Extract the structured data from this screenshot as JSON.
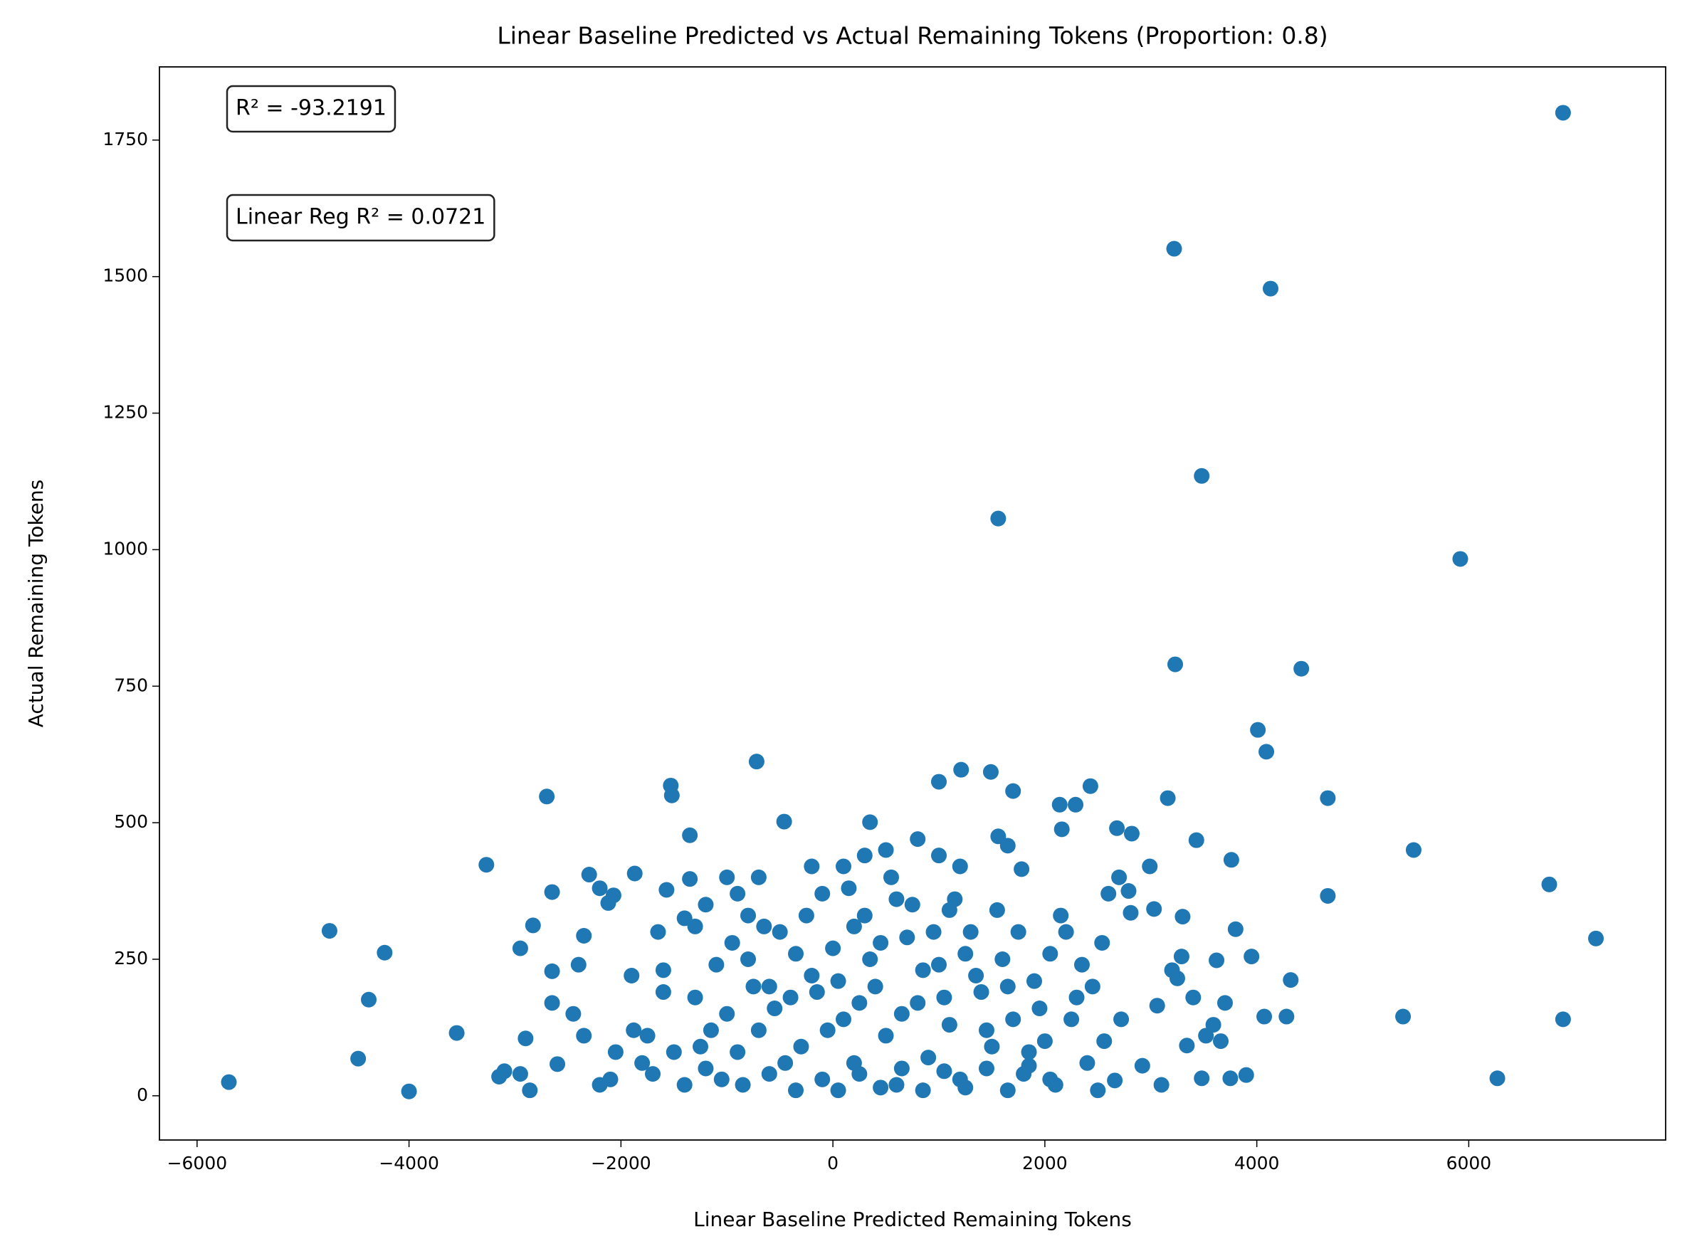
{
  "chart_data": {
    "type": "scatter",
    "title": "Linear Baseline Predicted vs Actual Remaining Tokens (Proportion: 0.8)",
    "x_label": "Linear Baseline Predicted Remaining Tokens",
    "y_label": "Actual Remaining Tokens",
    "annotations": [
      "R² = -93.2191",
      "Linear Reg R² = 0.0721"
    ],
    "color": "#1f77b4",
    "xlim": [
      -6355,
      7858
    ],
    "ylim": [
      -81,
      1884
    ],
    "xticks": [
      {
        "value": -6000,
        "label": "−6000"
      },
      {
        "value": -4000,
        "label": "−4000"
      },
      {
        "value": -2000,
        "label": "−2000"
      },
      0,
      2000,
      4000,
      6000
    ],
    "yticks": [
      0,
      250,
      500,
      750,
      1000,
      1250,
      1500,
      1750
    ],
    "x": [
      -5700,
      -4750,
      -4230,
      -4380,
      -4480,
      -4000,
      -3550,
      -3270,
      -3150,
      -2950,
      -2900,
      -2830,
      -2700,
      -2650,
      -2650,
      -2650,
      -2600,
      -2350,
      -2300,
      -2200,
      -2120,
      -2070,
      -1870,
      -1530,
      -1520,
      -1350,
      -1350,
      -1570,
      -720,
      -460,
      350,
      1000,
      1210,
      1490,
      1560,
      1560,
      1650,
      1700,
      1780,
      2140,
      2160,
      2290,
      2430,
      2680,
      2820,
      2990,
      3160,
      3220,
      3230,
      3300,
      3430,
      3480,
      3760,
      3800,
      3950,
      4010,
      4070,
      4090,
      4130,
      4280,
      4320,
      4420,
      4670,
      4670,
      5380,
      5480,
      5920,
      6270,
      6760,
      6890,
      6890,
      7200,
      3900,
      3750,
      3700,
      3660,
      3620,
      3590,
      3520,
      3480,
      3400,
      3340,
      3290,
      3250,
      3200,
      3100,
      3060,
      3030,
      2920,
      2810,
      2790,
      2720,
      2700,
      2660,
      2600,
      2560,
      2540,
      2500,
      -2860,
      -2950,
      -3100,
      -2400,
      -2450,
      -2350,
      -2050,
      -1900,
      -1880,
      -1750,
      -1650,
      -1600,
      -1600,
      -1400,
      -1300,
      -1200,
      -1000,
      -900,
      -800,
      -700,
      -600,
      -1000,
      -900,
      -800,
      -700,
      -600,
      -500,
      -400,
      -300,
      -200,
      -100,
      0,
      100,
      200,
      300,
      400,
      500,
      600,
      700,
      800,
      900,
      1000,
      1100,
      1200,
      1300,
      1400,
      1500,
      1600,
      1700,
      1800,
      1900,
      2000,
      2100,
      2200,
      2300,
      2400,
      -1200,
      -1100,
      -850,
      -650,
      -450,
      -250,
      -50,
      150,
      350,
      550,
      750,
      950,
      1150,
      1350,
      1550,
      1750,
      1950,
      2150,
      2350,
      -1300,
      -1150,
      -950,
      -750,
      -550,
      -350,
      -150,
      50,
      250,
      450,
      650,
      850,
      1050,
      1250,
      1450,
      1650,
      1850,
      2050,
      2250,
      2450,
      -1400,
      -1250,
      -1050,
      -350,
      50,
      250,
      450,
      650,
      850,
      1050,
      1250,
      1450,
      1650,
      1850,
      2050,
      -1700,
      -1800,
      -2100,
      -2200,
      -1500,
      100,
      300,
      500,
      800,
      1000,
      1200,
      -200,
      -100,
      1100,
      600,
      200
    ],
    "values": [
      25,
      302,
      262,
      176,
      68,
      8,
      115,
      423,
      35,
      270,
      105,
      312,
      548,
      373,
      228,
      170,
      58,
      293,
      405,
      380,
      353,
      367,
      407,
      568,
      550,
      477,
      397,
      377,
      612,
      502,
      501,
      575,
      597,
      593,
      1057,
      475,
      458,
      558,
      415,
      533,
      488,
      533,
      567,
      490,
      480,
      420,
      545,
      1551,
      790,
      328,
      468,
      1135,
      432,
      305,
      255,
      670,
      145,
      630,
      1478,
      145,
      212,
      782,
      545,
      366,
      145,
      450,
      983,
      32,
      387,
      1800,
      140,
      288,
      38,
      32,
      170,
      100,
      248,
      130,
      110,
      32,
      180,
      92,
      255,
      215,
      230,
      20,
      165,
      342,
      55,
      335,
      375,
      140,
      400,
      28,
      370,
      100,
      280,
      10,
      10,
      40,
      45,
      240,
      150,
      110,
      80,
      220,
      120,
      110,
      300,
      230,
      190,
      325,
      310,
      350,
      400,
      370,
      330,
      400,
      200,
      150,
      80,
      250,
      120,
      40,
      300,
      180,
      90,
      220,
      30,
      270,
      140,
      60,
      330,
      200,
      110,
      20,
      290,
      170,
      70,
      240,
      130,
      30,
      300,
      190,
      90,
      250,
      140,
      40,
      210,
      100,
      20,
      300,
      180,
      60,
      50,
      240,
      20,
      310,
      60,
      330,
      120,
      380,
      250,
      400,
      350,
      300,
      360,
      220,
      340,
      300,
      160,
      330,
      240,
      180,
      120,
      280,
      200,
      160,
      260,
      190,
      210,
      170,
      280,
      150,
      230,
      180,
      260,
      120,
      200,
      80,
      260,
      140,
      200,
      20,
      90,
      30,
      10,
      10,
      40,
      15,
      50,
      10,
      45,
      15,
      50,
      10,
      55,
      30,
      40,
      60,
      30,
      20,
      80,
      420,
      440,
      450,
      470,
      440,
      420,
      420,
      370,
      340,
      360,
      310
    ]
  }
}
